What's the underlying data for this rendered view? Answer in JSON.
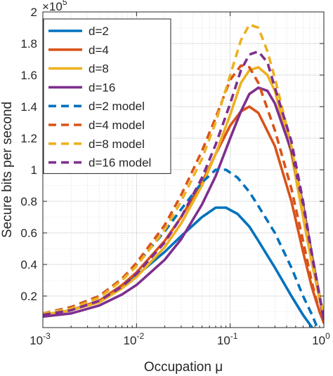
{
  "chart_data": {
    "type": "line",
    "xlabel": "Occupation μ",
    "ylabel": "Secure bits per second",
    "y_multiplier": "×10",
    "y_multiplier_exponent": "5",
    "xscale": "log",
    "xlim": [
      0.001,
      1
    ],
    "ylim": [
      0,
      200000
    ],
    "grid": true,
    "minor_grid": true,
    "legend_position": "top-left",
    "x_tick_labels": [
      {
        "base": "10",
        "exp": "-3",
        "value": 0.001
      },
      {
        "base": "10",
        "exp": "-2",
        "value": 0.01
      },
      {
        "base": "10",
        "exp": "-1",
        "value": 0.1
      },
      {
        "base": "10",
        "exp": "0",
        "value": 1
      }
    ],
    "y_tick_labels": [
      {
        "label": "0.2",
        "value": 20000
      },
      {
        "label": "0.4",
        "value": 40000
      },
      {
        "label": "0.6",
        "value": 60000
      },
      {
        "label": "0.8",
        "value": 80000
      },
      {
        "label": "1",
        "value": 100000
      },
      {
        "label": "1.2",
        "value": 120000
      },
      {
        "label": "1.4",
        "value": 140000
      },
      {
        "label": "1.6",
        "value": 160000
      },
      {
        "label": "1.8",
        "value": 180000
      },
      {
        "label": "2",
        "value": 200000
      }
    ],
    "series": [
      {
        "name": "d=2",
        "color": "#0072BD",
        "dash": false,
        "x": [
          0.001,
          0.002,
          0.004,
          0.007,
          0.01,
          0.02,
          0.03,
          0.05,
          0.07,
          0.09,
          0.12,
          0.16,
          0.2,
          0.3,
          0.45,
          0.6,
          0.75
        ],
        "y": [
          8000,
          11000,
          17000,
          26000,
          33000,
          48000,
          58000,
          70000,
          76000,
          76000,
          72000,
          64000,
          55000,
          38000,
          20000,
          8000,
          0
        ]
      },
      {
        "name": "d=4",
        "color": "#D95319",
        "dash": false,
        "x": [
          0.001,
          0.002,
          0.004,
          0.007,
          0.01,
          0.02,
          0.03,
          0.05,
          0.07,
          0.1,
          0.13,
          0.16,
          0.2,
          0.3,
          0.45,
          0.6,
          0.75,
          0.9,
          1
        ],
        "y": [
          8000,
          11000,
          17000,
          27000,
          35000,
          55000,
          70000,
          92000,
          110000,
          128000,
          137000,
          140000,
          136000,
          115000,
          80000,
          48000,
          25000,
          10000,
          3000
        ]
      },
      {
        "name": "d=8",
        "color": "#EDB120",
        "dash": false,
        "x": [
          0.001,
          0.002,
          0.004,
          0.007,
          0.01,
          0.02,
          0.03,
          0.05,
          0.07,
          0.1,
          0.13,
          0.16,
          0.2,
          0.25,
          0.3,
          0.45,
          0.6,
          0.75,
          0.9,
          1
        ],
        "y": [
          8000,
          11000,
          16000,
          25000,
          32000,
          51000,
          66000,
          90000,
          110000,
          135000,
          155000,
          163000,
          165000,
          160000,
          150000,
          110000,
          70000,
          40000,
          18000,
          6000
        ]
      },
      {
        "name": "d=16",
        "color": "#7E2F8E",
        "dash": false,
        "x": [
          0.001,
          0.002,
          0.004,
          0.007,
          0.01,
          0.02,
          0.03,
          0.05,
          0.07,
          0.1,
          0.13,
          0.16,
          0.2,
          0.25,
          0.3,
          0.45,
          0.6,
          0.75,
          0.9,
          1
        ],
        "y": [
          7000,
          9000,
          14000,
          21000,
          27000,
          43000,
          56000,
          78000,
          96000,
          120000,
          137000,
          148000,
          152000,
          150000,
          142000,
          112000,
          78000,
          45000,
          20000,
          5000
        ]
      },
      {
        "name": "d=2 model",
        "color": "#0072BD",
        "dash": true,
        "x": [
          0.001,
          0.002,
          0.004,
          0.007,
          0.01,
          0.02,
          0.03,
          0.05,
          0.07,
          0.09,
          0.12,
          0.16,
          0.2,
          0.3,
          0.45,
          0.6,
          0.75,
          0.85
        ],
        "y": [
          9000,
          13000,
          20000,
          31000,
          40000,
          61000,
          75000,
          92000,
          100000,
          100000,
          95000,
          86000,
          77000,
          60000,
          38000,
          20000,
          8000,
          0
        ]
      },
      {
        "name": "d=4 model",
        "color": "#D95319",
        "dash": true,
        "x": [
          0.001,
          0.002,
          0.004,
          0.007,
          0.01,
          0.02,
          0.03,
          0.05,
          0.07,
          0.1,
          0.13,
          0.16,
          0.2,
          0.3,
          0.45,
          0.6,
          0.75,
          0.9,
          1
        ],
        "y": [
          9000,
          13000,
          20000,
          31000,
          41000,
          65000,
          84000,
          112000,
          133000,
          157000,
          166000,
          165000,
          155000,
          125000,
          88000,
          55000,
          28000,
          10000,
          3000
        ]
      },
      {
        "name": "d=8 model",
        "color": "#EDB120",
        "dash": true,
        "x": [
          0.001,
          0.002,
          0.004,
          0.007,
          0.01,
          0.02,
          0.03,
          0.05,
          0.07,
          0.1,
          0.13,
          0.16,
          0.2,
          0.25,
          0.3,
          0.45,
          0.6,
          0.75,
          0.9,
          1
        ],
        "y": [
          9000,
          12000,
          19000,
          30000,
          39000,
          62000,
          80000,
          107000,
          130000,
          160000,
          182000,
          192000,
          190000,
          175000,
          158000,
          115000,
          75000,
          42000,
          20000,
          8000
        ]
      },
      {
        "name": "d=16 model",
        "color": "#7E2F8E",
        "dash": true,
        "x": [
          0.001,
          0.002,
          0.004,
          0.007,
          0.01,
          0.02,
          0.03,
          0.05,
          0.07,
          0.1,
          0.13,
          0.16,
          0.2,
          0.25,
          0.3,
          0.45,
          0.6,
          0.75,
          0.9,
          1
        ],
        "y": [
          8000,
          11000,
          17000,
          26000,
          34000,
          54000,
          70000,
          95000,
          116000,
          142000,
          163000,
          173000,
          175000,
          168000,
          152000,
          118000,
          80000,
          46000,
          20000,
          5000
        ]
      }
    ]
  }
}
